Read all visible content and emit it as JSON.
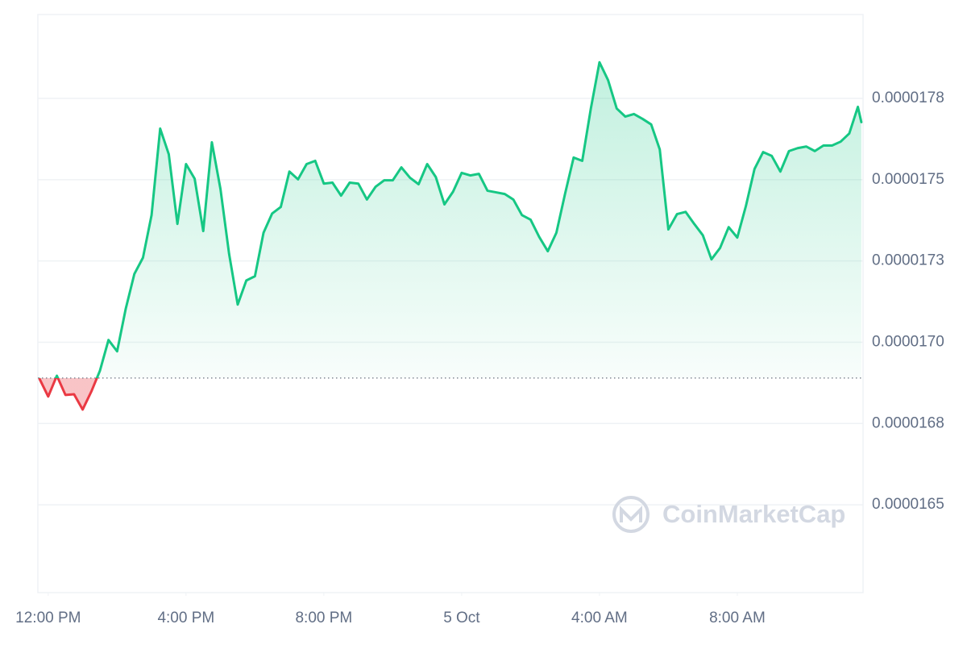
{
  "chart_data": {
    "type": "line",
    "x": [
      -0.25,
      0,
      0.25,
      0.5,
      0.75,
      1,
      1.25,
      1.5,
      1.75,
      2,
      2.25,
      2.5,
      2.75,
      3,
      3.25,
      3.5,
      3.75,
      4,
      4.25,
      4.5,
      4.75,
      5,
      5.25,
      5.5,
      5.75,
      6,
      6.25,
      6.5,
      6.75,
      7,
      7.25,
      7.5,
      7.75,
      8,
      8.25,
      8.5,
      8.75,
      9,
      9.25,
      9.5,
      9.75,
      10,
      10.25,
      10.5,
      10.75,
      11,
      11.25,
      11.5,
      11.75,
      12,
      12.25,
      12.5,
      12.75,
      13,
      13.25,
      13.5,
      13.75,
      14,
      14.25,
      14.5,
      14.75,
      15,
      15.25,
      15.5,
      15.75,
      16,
      16.25,
      16.5,
      16.75,
      17,
      17.25,
      17.5,
      17.75,
      18,
      18.25,
      18.5,
      18.75,
      19,
      19.25,
      19.5,
      19.75,
      20,
      20.25,
      20.5,
      20.75,
      21,
      21.25,
      21.5,
      21.75,
      22,
      22.25,
      22.5,
      22.75,
      23,
      23.25,
      23.5,
      23.6
    ],
    "values": [
      1.6887e-05,
      1.6833e-05,
      1.6897e-05,
      1.6838e-05,
      1.684e-05,
      1.6793e-05,
      1.6848e-05,
      1.6912e-05,
      1.7007e-05,
      1.6972e-05,
      1.7103e-05,
      1.721e-05,
      1.726e-05,
      1.7391e-05,
      1.7657e-05,
      1.7578e-05,
      1.7364e-05,
      1.7548e-05,
      1.7503e-05,
      1.7342e-05,
      1.7615e-05,
      1.7471e-05,
      1.7272e-05,
      1.7116e-05,
      1.719e-05,
      1.7203e-05,
      1.7337e-05,
      1.7396e-05,
      1.7416e-05,
      1.7525e-05,
      1.7501e-05,
      1.7548e-05,
      1.7558e-05,
      1.7488e-05,
      1.7491e-05,
      1.7451e-05,
      1.7491e-05,
      1.7488e-05,
      1.7439e-05,
      1.7478e-05,
      1.7498e-05,
      1.7498e-05,
      1.7538e-05,
      1.7506e-05,
      1.7486e-05,
      1.7548e-05,
      1.7508e-05,
      1.7424e-05,
      1.7463e-05,
      1.7521e-05,
      1.7513e-05,
      1.7518e-05,
      1.7466e-05,
      1.7461e-05,
      1.7456e-05,
      1.7439e-05,
      1.7391e-05,
      1.7377e-05,
      1.7324e-05,
      1.728e-05,
      1.7337e-05,
      1.7456e-05,
      1.7568e-05,
      1.7558e-05,
      1.7719e-05,
      1.7861e-05,
      1.7806e-05,
      1.7719e-05,
      1.7694e-05,
      1.7702e-05,
      1.7687e-05,
      1.767e-05,
      1.7593e-05,
      1.7347e-05,
      1.7394e-05,
      1.7401e-05,
      1.7364e-05,
      1.7329e-05,
      1.7255e-05,
      1.729e-05,
      1.7354e-05,
      1.7322e-05,
      1.7419e-05,
      1.7533e-05,
      1.7585e-05,
      1.7573e-05,
      1.7525e-05,
      1.7588e-05,
      1.7597e-05,
      1.7602e-05,
      1.7588e-05,
      1.7605e-05,
      1.7605e-05,
      1.7617e-05,
      1.7642e-05,
      1.7724e-05,
      1.7677e-05
    ],
    "color": "#16c784",
    "below_color": "#ea3943",
    "baseline": 1.689e-05,
    "xlim": [
      -0.3,
      23.65
    ],
    "xticks": [
      {
        "value": 0,
        "label": "12:00 PM"
      },
      {
        "value": 4,
        "label": "4:00 PM"
      },
      {
        "value": 8,
        "label": "8:00 PM"
      },
      {
        "value": 12,
        "label": "5 Oct"
      },
      {
        "value": 16,
        "label": "4:00 AM"
      },
      {
        "value": 20,
        "label": "8:00 AM"
      }
    ],
    "ylim": [
      1.623e-05,
      1.8008e-05
    ],
    "yticks": [
      {
        "value": 1.65e-05,
        "label": "0.0000165"
      },
      {
        "value": 1.675e-05,
        "label": "0.0000168"
      },
      {
        "value": 1.7e-05,
        "label": "0.0000170"
      },
      {
        "value": 1.725e-05,
        "label": "0.0000173"
      },
      {
        "value": 1.75e-05,
        "label": "0.0000175"
      },
      {
        "value": 1.775e-05,
        "label": "0.0000178"
      }
    ],
    "grid": true,
    "watermark": "CoinMarketCap"
  }
}
